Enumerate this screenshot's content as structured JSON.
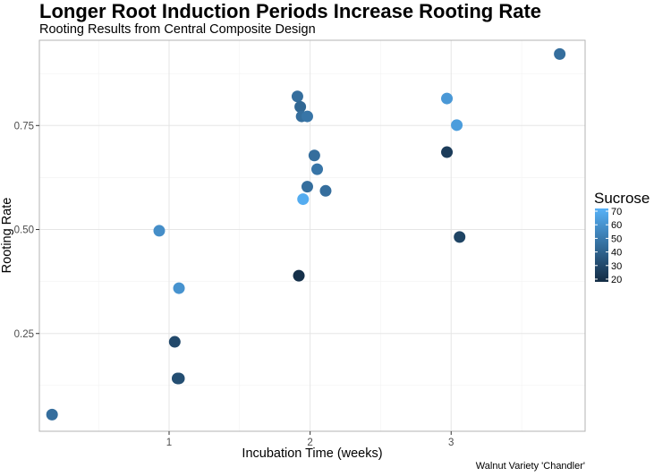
{
  "chart_data": {
    "type": "scatter",
    "title": "Longer Root Induction Periods Increase Rooting Rate",
    "subtitle": "Rooting Results from Central Composite Design",
    "xlabel": "Incubation Time (weeks)",
    "ylabel": "Rooting Rate",
    "caption": "Walnut Variety 'Chandler'",
    "xlim": [
      0.08,
      3.95
    ],
    "ylim": [
      0.015,
      0.955
    ],
    "x_ticks": [
      1,
      2,
      3
    ],
    "x_tick_labels": [
      "1",
      "2",
      "3"
    ],
    "y_ticks": [
      0.25,
      0.5,
      0.75
    ],
    "y_tick_labels": [
      "0.25",
      "0.50",
      "0.75"
    ],
    "grid": true,
    "legend": {
      "title": "Sucrose",
      "position": "right",
      "min": 18,
      "max": 72,
      "ticks": [
        20,
        30,
        40,
        50,
        60,
        70
      ],
      "tick_labels": [
        "20",
        "30",
        "40",
        "50",
        "60",
        "70"
      ],
      "color_low": "#132b43",
      "color_high": "#56b1f7"
    },
    "points": [
      {
        "x": 0.17,
        "y": 0.055,
        "sucrose": 45
      },
      {
        "x": 0.93,
        "y": 0.497,
        "sucrose": 58
      },
      {
        "x": 1.04,
        "y": 0.23,
        "sucrose": 30
      },
      {
        "x": 1.06,
        "y": 0.142,
        "sucrose": 32
      },
      {
        "x": 1.07,
        "y": 0.142,
        "sucrose": 32
      },
      {
        "x": 1.07,
        "y": 0.359,
        "sucrose": 60
      },
      {
        "x": 1.91,
        "y": 0.82,
        "sucrose": 45
      },
      {
        "x": 1.92,
        "y": 0.389,
        "sucrose": 20
      },
      {
        "x": 1.93,
        "y": 0.795,
        "sucrose": 42
      },
      {
        "x": 1.94,
        "y": 0.772,
        "sucrose": 45
      },
      {
        "x": 1.95,
        "y": 0.573,
        "sucrose": 70
      },
      {
        "x": 1.98,
        "y": 0.603,
        "sucrose": 45
      },
      {
        "x": 1.98,
        "y": 0.772,
        "sucrose": 48
      },
      {
        "x": 2.03,
        "y": 0.678,
        "sucrose": 45
      },
      {
        "x": 2.05,
        "y": 0.645,
        "sucrose": 48
      },
      {
        "x": 2.11,
        "y": 0.593,
        "sucrose": 45
      },
      {
        "x": 2.97,
        "y": 0.815,
        "sucrose": 62
      },
      {
        "x": 2.97,
        "y": 0.686,
        "sucrose": 25
      },
      {
        "x": 3.04,
        "y": 0.751,
        "sucrose": 64
      },
      {
        "x": 3.06,
        "y": 0.482,
        "sucrose": 28
      },
      {
        "x": 3.77,
        "y": 0.922,
        "sucrose": 45
      }
    ]
  }
}
